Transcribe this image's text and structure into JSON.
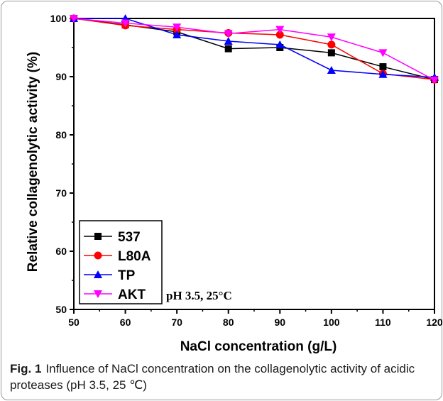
{
  "chart_data": {
    "type": "line",
    "xlabel": "NaCl concentration (g/L)",
    "ylabel": "Relative collagenolytic activity (%)",
    "xlim": [
      50,
      120
    ],
    "ylim": [
      50,
      100
    ],
    "x": [
      50,
      60,
      70,
      80,
      90,
      100,
      110,
      120
    ],
    "x_ticks": [
      "50",
      "60",
      "70",
      "80",
      "90",
      "100",
      "110",
      "120"
    ],
    "y_ticks": [
      "50",
      "60",
      "70",
      "80",
      "90",
      "100"
    ],
    "legend_position": "bottom-left",
    "annotation": "pH 3.5, 25°C",
    "series": [
      {
        "name": "537",
        "color": "#000000",
        "marker": "square",
        "values": [
          100,
          98.9,
          97.7,
          94.8,
          95.0,
          94.1,
          91.7,
          89.5
        ]
      },
      {
        "name": "L80A",
        "color": "#ff0000",
        "marker": "circle",
        "values": [
          100,
          98.8,
          98.1,
          97.5,
          97.2,
          95.5,
          90.5,
          89.5
        ]
      },
      {
        "name": "TP",
        "color": "#0000ff",
        "marker": "triangle-up",
        "values": [
          100,
          100.0,
          97.2,
          96.1,
          95.5,
          91.1,
          90.4,
          89.9
        ]
      },
      {
        "name": "AKT",
        "color": "#ff00ff",
        "marker": "triangle-down",
        "values": [
          100,
          99.2,
          98.5,
          97.4,
          98.1,
          96.8,
          94.1,
          89.4
        ]
      }
    ]
  },
  "caption": {
    "label": "Fig. 1",
    "text": "Influence of NaCl concentration on the collagenolytic activity of acidic proteases (pH 3.5, 25 ℃)"
  }
}
